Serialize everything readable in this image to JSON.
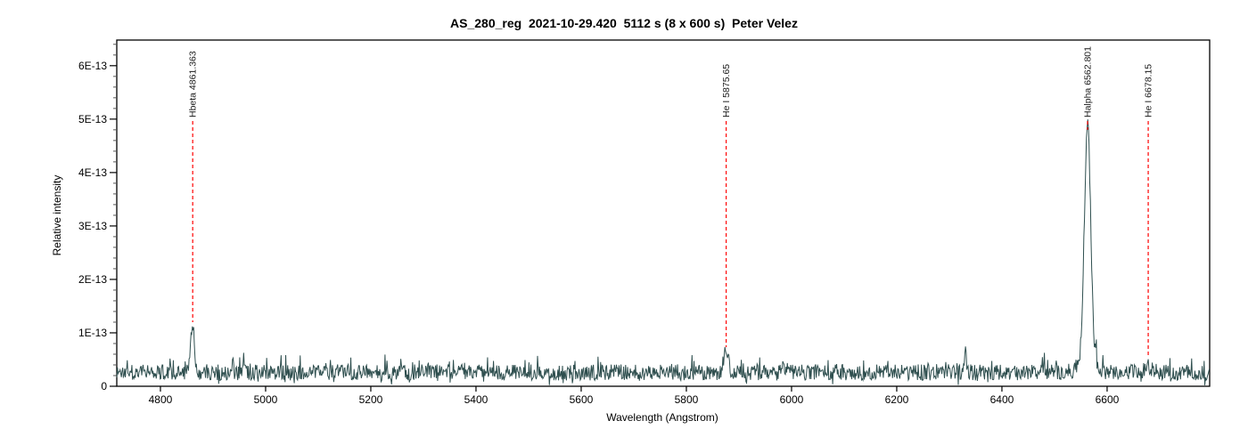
{
  "title": "AS_280_reg  2021-10-29.420  5112 s (8 x 600 s)  Peter Velez",
  "chart_data": {
    "type": "line",
    "title": "AS_280_reg  2021-10-29.420  5112 s (8 x 600 s)  Peter Velez",
    "xlabel": "Wavelength (Angstrom)",
    "ylabel": "Relative intensity",
    "x_range": [
      4717,
      6795
    ],
    "y_range": [
      0,
      6.48e-13
    ],
    "grid": false,
    "legend": false,
    "line_color": "#2f4f4f",
    "marker_color": "#ff0000",
    "frame_color": "#000000",
    "x_ticks": {
      "values": [
        4800,
        5000,
        5200,
        5400,
        5600,
        5800,
        6000,
        6200,
        6400,
        6600
      ],
      "labels": [
        "4800",
        "5000",
        "5200",
        "5400",
        "5600",
        "5800",
        "6000",
        "6200",
        "6400",
        "6600"
      ]
    },
    "y_ticks": {
      "values": [
        0,
        1e-13,
        2e-13,
        3e-13,
        4e-13,
        5e-13,
        6e-13
      ],
      "labels": [
        "0",
        "1E-13",
        "2E-13",
        "3E-13",
        "4E-13",
        "5E-13",
        "6E-13"
      ]
    },
    "y_minor_tick_step": 2e-14,
    "spectral_lines": [
      {
        "label": "Hbeta 4861.363",
        "wavelength": 4861.363,
        "peak_intensity": 1.15e-13,
        "dash_end_intensity": 1.2e-13
      },
      {
        "label": "He I 5875.65",
        "wavelength": 5875.65,
        "peak_intensity": 6.8e-14,
        "dash_end_intensity": 7.3e-14
      },
      {
        "label": "Halpha 6562.801",
        "wavelength": 6562.801,
        "peak_intensity": 4.85e-13,
        "dash_end_intensity": 4.8e-13
      },
      {
        "label": "He I 6678.15",
        "wavelength": 6678.15,
        "peak_intensity": 4.5e-14,
        "dash_end_intensity": 5.6e-14
      }
    ],
    "continuum_level": 2.6e-14,
    "noise_amplitude": 1.5e-14,
    "peaks": [
      {
        "center": 4861.363,
        "amplitude": 8.8e-14,
        "sigma": 3.5
      },
      {
        "center": 5875.65,
        "amplitude": 4e-14,
        "sigma": 4.5
      },
      {
        "center": 6331.0,
        "amplitude": 3.6e-14,
        "sigma": 1.6
      },
      {
        "center": 6562.801,
        "amplitude": 4.3e-13,
        "sigma": 6.0
      },
      {
        "center": 6562.801,
        "amplitude": 3e-14,
        "sigma": 14.0
      },
      {
        "center": 6678.15,
        "amplitude": 1.6e-14,
        "sigma": 3.0
      }
    ]
  }
}
